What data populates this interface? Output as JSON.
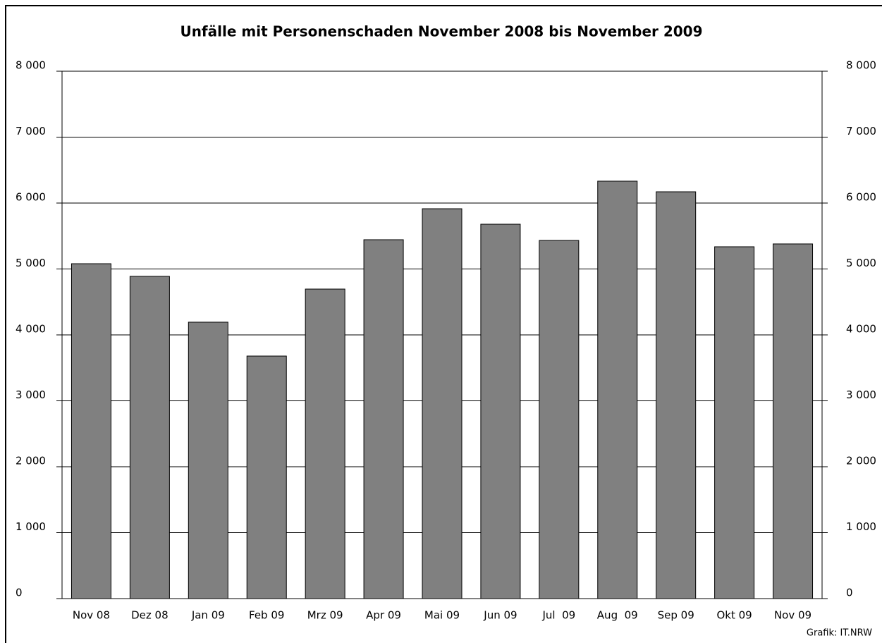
{
  "chart_data": {
    "type": "bar",
    "title": "Unfälle mit Personenschaden November 2008 bis November 2009",
    "source": "Grafik: IT.NRW",
    "categories": [
      "Nov 08",
      "Dez 08",
      "Jan 09",
      "Feb 09",
      "Mrz 09",
      "Apr 09",
      "Mai 09",
      "Jun 09",
      "Jul  09",
      "Aug  09",
      "Sep 09",
      "Okt 09",
      "Nov 09"
    ],
    "values": [
      5080,
      4888,
      4193,
      3679,
      4695,
      5444,
      5914,
      5679,
      5433,
      6332,
      6171,
      5337,
      5380
    ],
    "color": "#808080",
    "ylim": [
      0,
      8000
    ],
    "yticks": [
      0,
      {
        "value": 1000,
        "label": "1 000"
      },
      {
        "value": 2000,
        "label": "2 000"
      },
      {
        "value": 3000,
        "label": "3 000"
      },
      {
        "value": 4000,
        "label": "4 000"
      },
      {
        "value": 5000,
        "label": "5 000"
      },
      {
        "value": 6000,
        "label": "6 000"
      },
      {
        "value": 7000,
        "label": "7 000"
      },
      {
        "value": 8000,
        "label": "8 000"
      }
    ],
    "y2lim": [
      0,
      8000
    ],
    "y2ticks": [
      0,
      {
        "value": 1000,
        "label": "1 000"
      },
      {
        "value": 2000,
        "label": "2 000"
      },
      {
        "value": 3000,
        "label": "3 000"
      },
      {
        "value": 4000,
        "label": "4 000"
      },
      {
        "value": 5000,
        "label": "5 000"
      },
      {
        "value": 6000,
        "label": "6 000"
      },
      {
        "value": 7000,
        "label": "7 000"
      },
      {
        "value": 8000,
        "label": "8 000"
      }
    ],
    "grid": true
  }
}
